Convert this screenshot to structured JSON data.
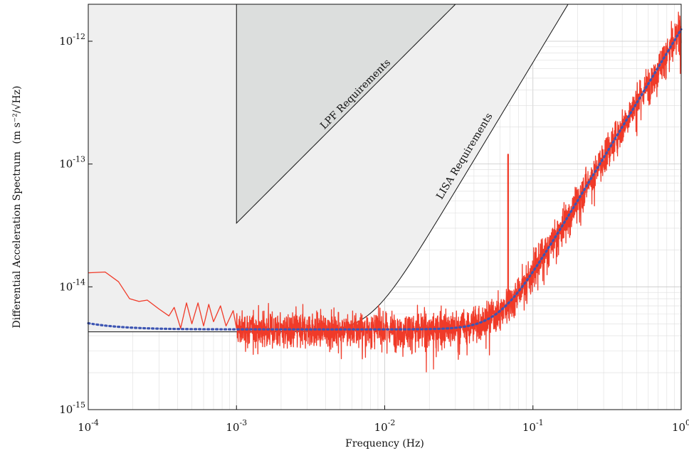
{
  "chart_data": {
    "type": "line",
    "title": "",
    "xlabel": "Frequency (Hz)",
    "ylabel": "Differential Acceleration Spectrum",
    "ylabel_units": "(m s⁻²/√Hz)",
    "x_scale": "log",
    "y_scale": "log",
    "xlim": [
      0.0001,
      1
    ],
    "ylim": [
      1e-15,
      2e-12
    ],
    "grid": true,
    "x_ticks": [
      {
        "value": 0.0001,
        "base": "10",
        "exp": "-4"
      },
      {
        "value": 0.001,
        "base": "10",
        "exp": "-3"
      },
      {
        "value": 0.01,
        "base": "10",
        "exp": "-2"
      },
      {
        "value": 0.1,
        "base": "10",
        "exp": "-1"
      },
      {
        "value": 1,
        "base": "10",
        "exp": "0"
      }
    ],
    "y_ticks": [
      {
        "value": 1e-15,
        "base": "10",
        "exp": "-15"
      },
      {
        "value": 1e-14,
        "base": "10",
        "exp": "-14"
      },
      {
        "value": 1e-13,
        "base": "10",
        "exp": "-13"
      },
      {
        "value": 1e-12,
        "base": "10",
        "exp": "-12"
      }
    ],
    "regions": [
      {
        "name": "LISA Requirements",
        "color": "#efefef",
        "floor": 4.3e-15,
        "f_start": 0.0001,
        "corner_hz": 0.008,
        "slope": 2,
        "label": "LISA Requirements"
      },
      {
        "name": "LPF Requirements",
        "color": "#d8dad9",
        "f_start": 0.001,
        "start_value": 3.3e-14,
        "f_anchor": 0.03,
        "value_anchor": 2e-12,
        "label": "LPF Requirements"
      }
    ],
    "series": [
      {
        "style": "measured",
        "color": "#f03a28",
        "points": [
          [
            0.0001,
            1.3e-14
          ],
          [
            0.00013,
            1.32e-14
          ],
          [
            0.00016,
            1.1e-14
          ],
          [
            0.00019,
            8e-15
          ],
          [
            0.00022,
            7.6e-15
          ],
          [
            0.00025,
            7.8e-15
          ],
          [
            0.0003,
            6.6e-15
          ],
          [
            0.00035,
            5.8e-15
          ],
          [
            0.00038,
            6.8e-15
          ],
          [
            0.00042,
            4.6e-15
          ],
          [
            0.00046,
            7.4e-15
          ],
          [
            0.0005,
            5e-15
          ],
          [
            0.00055,
            7.4e-15
          ],
          [
            0.0006,
            4.8e-15
          ],
          [
            0.00065,
            7.2e-15
          ],
          [
            0.0007,
            5.2e-15
          ],
          [
            0.00078,
            7e-15
          ],
          [
            0.00085,
            4.8e-15
          ],
          [
            0.00095,
            6.4e-15
          ],
          [
            0.001,
            4.6e-15
          ]
        ],
        "noise_model": {
          "floor": 4.5e-15,
          "corner_hz": 0.06,
          "slope": 2,
          "f_start": 0.001,
          "f_end": 1
        },
        "spike": {
          "frequency": 0.068,
          "peak": 1.2e-13
        }
      },
      {
        "style": "model",
        "color": "#3d55b3",
        "dashed": true,
        "low_freq_term": 2.3e-15,
        "floor": 4.5e-15,
        "corner_hz": 0.06,
        "slope": 2,
        "f_start": 0.0001,
        "f_end": 1
      }
    ]
  }
}
